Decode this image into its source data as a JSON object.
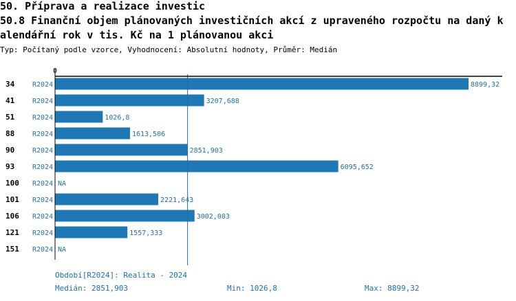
{
  "header": {
    "title": "50. Příprava a realizace investic",
    "subtitle_line1": "50.8 Finanční objem plánovaných investičních akcí z upraveného rozpočtu na daný k",
    "subtitle_line2": "alendářní rok v tis. Kč na 1 plánovanou akci",
    "meta": "Typ: Počítaný podle vzorce, Vyhodnocení: Absolutní hodnoty, Průměr: Medián"
  },
  "colors": {
    "bar": "#1f77b4",
    "text_blue": "#1f6fa8",
    "axis": "#000000",
    "median_line": "#1f6fa8"
  },
  "chart_data": {
    "type": "bar",
    "orientation": "horizontal",
    "zero_label": "0",
    "categories": [
      "34",
      "41",
      "51",
      "88",
      "90",
      "93",
      "100",
      "101",
      "106",
      "121",
      "151"
    ],
    "period_labels": [
      "R2024",
      "R2024",
      "R2024",
      "R2024",
      "R2024",
      "R2024",
      "R2024",
      "R2024",
      "R2024",
      "R2024",
      "R2024"
    ],
    "values": [
      8899.32,
      3207.688,
      1026.8,
      1613.506,
      2851.903,
      6095.652,
      null,
      2221.643,
      3002.083,
      1557.333,
      null
    ],
    "value_labels": [
      "8899,32",
      "3207,688",
      "1026,8",
      "1613,506",
      "2851,903",
      "6095,652",
      "NA",
      "2221,643",
      "3002,083",
      "1557,333",
      "NA"
    ],
    "xlim": [
      0,
      8899.32
    ],
    "median": 2851.903
  },
  "footer": {
    "period": "Období[R2024]: Realita - 2024",
    "median": "Medián: 2851,903",
    "min": "Min: 1026,8",
    "max": "Max: 8899,32"
  }
}
